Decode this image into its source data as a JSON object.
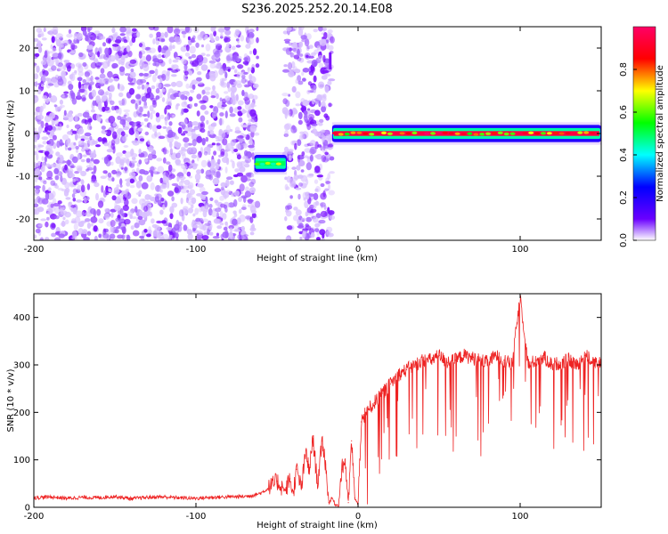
{
  "chart_data": [
    {
      "type": "heatmap",
      "title": "S236.2025.252.20.14.E08",
      "xlabel": "Height of straight line (km)",
      "ylabel": "Frequency (Hz)",
      "xlim": [
        -200,
        150
      ],
      "ylim": [
        -25,
        25
      ],
      "xticks": [
        -200,
        -100,
        0,
        100
      ],
      "xtick_labels": [
        "-200",
        "-100",
        "0",
        "100"
      ],
      "yticks": [
        -20,
        -10,
        0,
        10,
        20
      ],
      "ytick_labels": [
        "-20",
        "-10",
        "0",
        "10",
        "20"
      ],
      "colorbar": {
        "label": "Normalized spectral amplitude",
        "range": [
          0,
          1
        ],
        "ticks": [
          0.0,
          0.2,
          0.4,
          0.6,
          0.8
        ],
        "tick_labels": [
          "0.0",
          "0.2",
          "0.4",
          "0.6",
          "0.8"
        ],
        "stops": [
          "#ffffff",
          "#6a00ff",
          "#0000ff",
          "#00ffff",
          "#00ff00",
          "#ffff00",
          "#ff0000",
          "#ff0066"
        ]
      },
      "regions": [
        {
          "name": "noise",
          "x": [
            -200,
            -62
          ],
          "y": [
            -25,
            25
          ],
          "amplitude": 0.1
        },
        {
          "name": "noise",
          "x": [
            -45,
            -16
          ],
          "y": [
            -25,
            25
          ],
          "amplitude": 0.1
        },
        {
          "name": "band",
          "x": [
            -64,
            -44
          ],
          "y": [
            -9,
            -5
          ],
          "amplitude": 0.5,
          "center_y": -7
        },
        {
          "name": "line",
          "x": [
            -16,
            150
          ],
          "y": [
            -2,
            2
          ],
          "amplitude": 0.95,
          "center_y": 0
        }
      ]
    },
    {
      "type": "line",
      "xlabel": "Height of straight line (km)",
      "ylabel": "SNR (10 * v/v)",
      "xlim": [
        -200,
        150
      ],
      "ylim": [
        0,
        450
      ],
      "xticks": [
        -200,
        -100,
        0,
        100
      ],
      "xtick_labels": [
        "-200",
        "-100",
        "0",
        "100"
      ],
      "yticks": [
        0,
        100,
        200,
        300,
        400
      ],
      "ytick_labels": [
        "0",
        "100",
        "200",
        "300",
        "400"
      ],
      "color": "#ee2222",
      "series": [
        {
          "name": "SNR",
          "x": [
            -200,
            -190,
            -180,
            -170,
            -160,
            -150,
            -140,
            -130,
            -120,
            -110,
            -100,
            -90,
            -80,
            -70,
            -65,
            -60,
            -55,
            -50,
            -45,
            -42,
            -40,
            -38,
            -35,
            -32,
            -30,
            -28,
            -25,
            -22,
            -20,
            -18,
            -16,
            -14,
            -12,
            -10,
            -8,
            -6,
            -4,
            -2,
            0,
            2,
            5,
            10,
            15,
            20,
            25,
            30,
            35,
            40,
            45,
            50,
            55,
            60,
            65,
            70,
            75,
            80,
            85,
            90,
            95,
            100,
            105,
            110,
            115,
            120,
            125,
            130,
            135,
            140,
            145,
            150
          ],
          "y": [
            20,
            22,
            19,
            21,
            20,
            23,
            18,
            21,
            22,
            20,
            19,
            21,
            22,
            23,
            25,
            30,
            40,
            55,
            35,
            60,
            30,
            80,
            40,
            120,
            70,
            150,
            50,
            140,
            90,
            10,
            20,
            5,
            5,
            80,
            100,
            10,
            140,
            20,
            5,
            180,
            200,
            220,
            240,
            260,
            280,
            290,
            300,
            310,
            310,
            320,
            305,
            310,
            320,
            315,
            310,
            305,
            320,
            310,
            300,
            445,
            300,
            310,
            315,
            300,
            305,
            310,
            300,
            320,
            310,
            300
          ]
        }
      ]
    }
  ]
}
